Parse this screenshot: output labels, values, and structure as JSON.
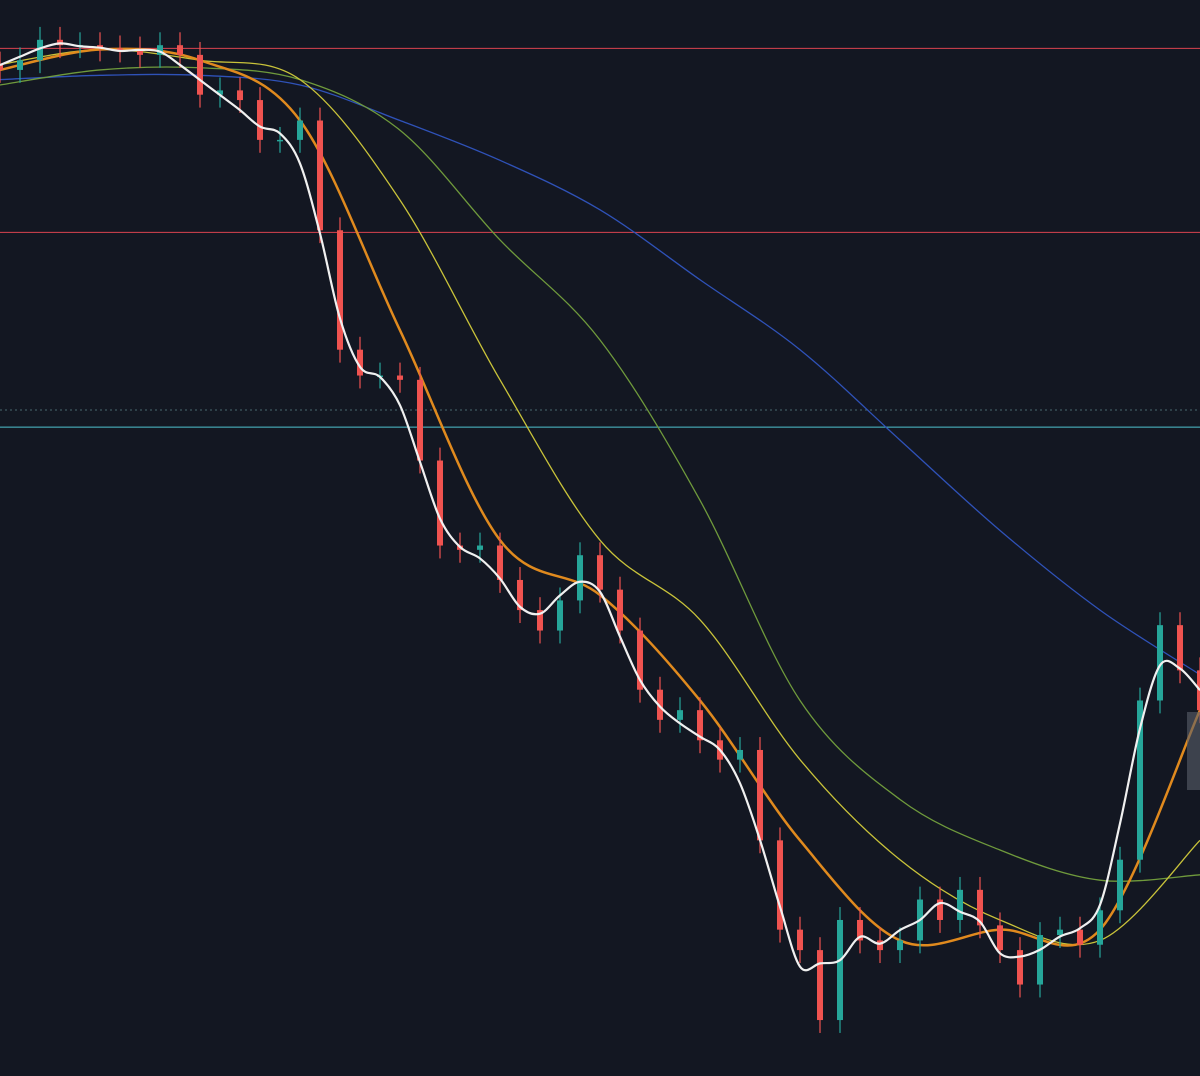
{
  "chart_data": {
    "type": "candlestick",
    "title": "",
    "xlabel": "",
    "ylabel": "",
    "ylim": [
      0,
      100
    ],
    "grid": false,
    "colors": {
      "background": "#131722",
      "up": "#26a69a",
      "down": "#ef5350",
      "fast_ma": "#f0f0f0",
      "ma_orange": "#e08a1e",
      "ma_yellow": "#c9c33a",
      "ma_green": "#6f9a3c",
      "ma_blue": "#2f52b8"
    },
    "closes": [
      93.5,
      94.4,
      96.3,
      95.8,
      95.8,
      95.5,
      95.4,
      94.9,
      95.8,
      94.9,
      91.2,
      91.6,
      90.7,
      87.0,
      87.0,
      88.8,
      78.6,
      67.5,
      65.1,
      65.1,
      64.7,
      57.2,
      49.3,
      48.9,
      49.3,
      46.1,
      43.3,
      41.4,
      44.2,
      48.4,
      45.2,
      41.4,
      35.9,
      33.1,
      34.0,
      31.2,
      29.4,
      30.3,
      21.9,
      13.6,
      11.7,
      5.2,
      14.5,
      12.6,
      11.7,
      12.6,
      16.4,
      14.5,
      17.3,
      14.0,
      11.7,
      8.5,
      13.1,
      13.6,
      12.2,
      15.4,
      20.1,
      34.9,
      41.9,
      37.7,
      34.0
    ],
    "moving_averages": [
      {
        "color_key": "ma_orange",
        "values": [
          93.5,
          95.4,
          94.4,
          88.8,
          69.3,
          49.8,
          44.7,
          34.9,
          21.9,
          12.6,
          13.6,
          13.6,
          34.0
        ]
      },
      {
        "color_key": "ma_yellow",
        "values": [
          94.0,
          95.4,
          94.4,
          92.6,
          81.4,
          64.7,
          49.8,
          42.4,
          29.4,
          20.1,
          14.5,
          12.6,
          21.9
        ]
      },
      {
        "color_key": "ma_green",
        "values": [
          92.1,
          93.5,
          93.7,
          92.6,
          87.9,
          77.7,
          68.4,
          53.5,
          34.9,
          25.7,
          21.0,
          18.2,
          18.7
        ]
      },
      {
        "color_key": "ma_blue",
        "values": [
          92.6,
          93.0,
          93.0,
          92.1,
          88.8,
          85.1,
          80.5,
          74.0,
          67.5,
          59.1,
          50.7,
          43.3,
          37.3
        ]
      }
    ],
    "horizontal_lines": [
      {
        "value": 95.5,
        "color": "#d9434f",
        "style": "solid"
      },
      {
        "value": 78.4,
        "color": "#d9434f",
        "style": "solid"
      },
      {
        "value": 61.9,
        "color": "#4a6a70",
        "style": "dotted"
      },
      {
        "value": 60.3,
        "color": "#4fc3d0",
        "style": "solid"
      }
    ]
  }
}
